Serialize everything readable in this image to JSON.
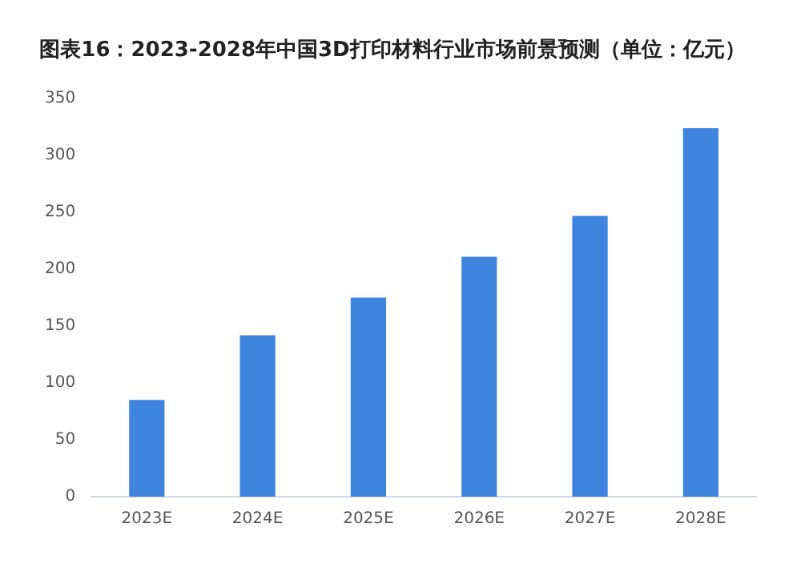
{
  "chart_data": {
    "type": "bar",
    "title": "图表16：2023-2028年中国3D打印材料行业市场前景预测（单位：亿元）",
    "categories": [
      "2023E",
      "2024E",
      "2025E",
      "2026E",
      "2027E",
      "2028E"
    ],
    "values": [
      85,
      142,
      175,
      211,
      247,
      324
    ],
    "color": "#3f85e0",
    "ylim": [
      0,
      350
    ],
    "yticks": [
      0,
      50,
      100,
      150,
      200,
      250,
      300,
      350
    ],
    "grid": false
  }
}
